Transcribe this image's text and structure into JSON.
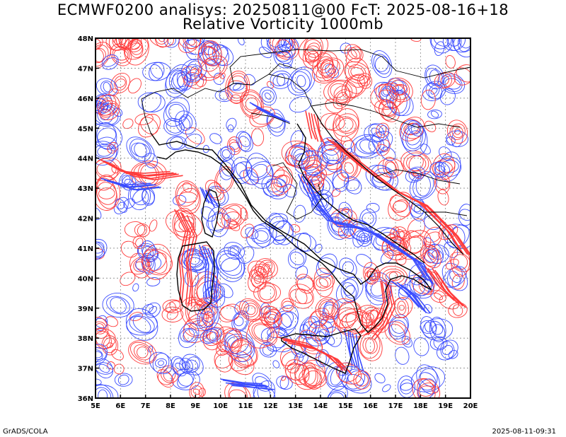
{
  "title": {
    "line1": "ECMWF0200 analisys: 20250811@00 FcT: 2025-08-16+18",
    "line2": "Relative Vorticity 1000mb"
  },
  "footer": {
    "left": "GrADS/COLA",
    "right": "2025-08-11-09:31"
  },
  "map": {
    "lon_range": [
      5,
      20
    ],
    "lat_range": [
      36,
      48
    ],
    "lon_ticks": [
      "5E",
      "6E",
      "7E",
      "8E",
      "9E",
      "10E",
      "11E",
      "12E",
      "13E",
      "14E",
      "15E",
      "16E",
      "17E",
      "18E",
      "19E",
      "20E"
    ],
    "lat_ticks": [
      "36N",
      "37N",
      "38N",
      "39N",
      "40N",
      "41N",
      "42N",
      "43N",
      "44N",
      "45N",
      "46N",
      "47N",
      "48N"
    ],
    "grid": true,
    "colors": {
      "positive_contours": "#ff3a3a",
      "negative_contours": "#3a4cff",
      "coastline": "#000000",
      "grid": "#888888"
    }
  }
}
